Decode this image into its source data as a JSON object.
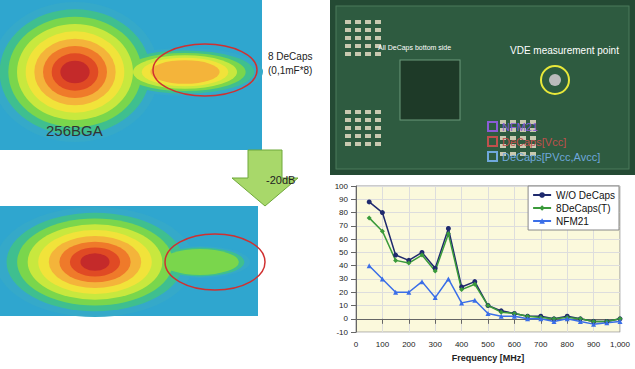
{
  "heatmaps": {
    "package_label": "256BGA",
    "decap_label": "8 DeCaps",
    "decap_value": "(0,1mF*8)",
    "reduction": "-20dB"
  },
  "board": {
    "measurement_point": "VDE measurement point",
    "decap_note": "All DeCaps bottom side",
    "legend": [
      {
        "label": "NFM21",
        "color": "#8a5cd6"
      },
      {
        "label": "DeCaps[Vcc]",
        "color": "#c0504d"
      },
      {
        "label": "DeCaps[PVcc,Avcc]",
        "color": "#6fa8dc"
      }
    ]
  },
  "chart_data": {
    "type": "line",
    "x_label": "Frequency [MHz]",
    "x": [
      50,
      100,
      150,
      200,
      250,
      300,
      350,
      400,
      450,
      500,
      550,
      600,
      650,
      700,
      750,
      800,
      850,
      900,
      950,
      1000
    ],
    "series": [
      {
        "name": "W/O DeCaps",
        "color": "#1f2a6e",
        "marker": "circle",
        "line_style": "solid",
        "values": [
          88,
          80,
          48,
          44,
          50,
          38,
          68,
          24,
          28,
          10,
          6,
          4,
          2,
          2,
          0,
          2,
          0,
          -2,
          -2,
          0
        ]
      },
      {
        "name": "8DeCaps(T)",
        "color": "#3a9a3a",
        "marker": "diamond",
        "line_style": "solid",
        "values": [
          76,
          66,
          44,
          42,
          48,
          36,
          64,
          22,
          26,
          10,
          5,
          4,
          2,
          1,
          0,
          1,
          0,
          -2,
          -2,
          0
        ]
      },
      {
        "name": "NFM21",
        "color": "#3a6ee8",
        "marker": "triangle",
        "line_style": "solid",
        "values": [
          40,
          30,
          20,
          20,
          28,
          16,
          30,
          12,
          14,
          4,
          2,
          2,
          0,
          0,
          -2,
          0,
          -2,
          -4,
          -3,
          -2
        ]
      }
    ],
    "xlim": [
      0,
      1000
    ],
    "xticks": [
      0,
      100,
      200,
      300,
      400,
      500,
      600,
      700,
      800,
      900,
      1000
    ],
    "ylim": [
      -10,
      100
    ],
    "yticks": [
      -10,
      0,
      10,
      20,
      30,
      40,
      50,
      60,
      70,
      80,
      90,
      100
    ],
    "grid": true,
    "legend": "upper right"
  }
}
